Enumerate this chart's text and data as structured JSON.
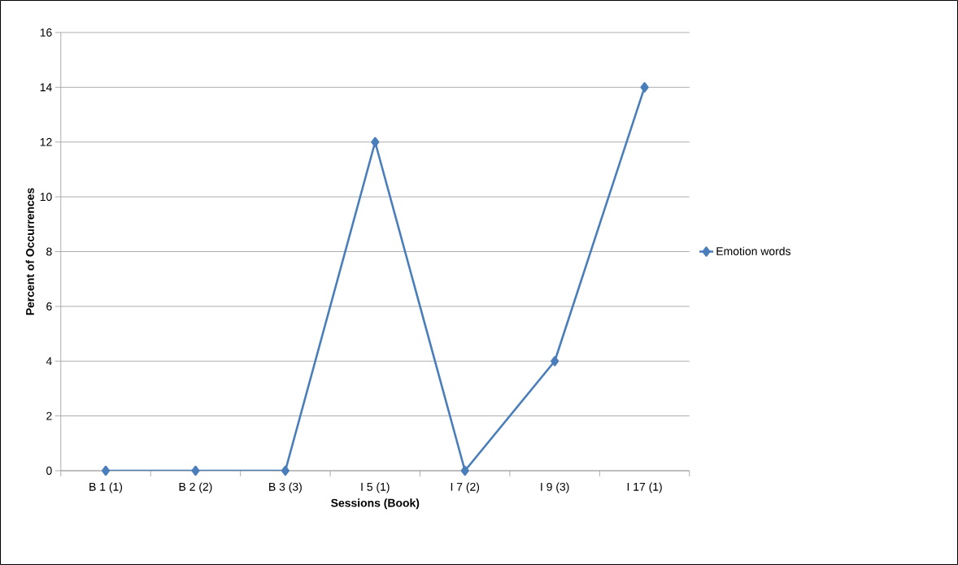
{
  "chart_data": {
    "type": "line",
    "xlabel": "Sessions (Book)",
    "ylabel": "Percent of Occurrences",
    "categories": [
      "B 1 (1)",
      "B 2 (2)",
      "B 3 (3)",
      "I 5 (1)",
      "I 7 (2)",
      "I 9 (3)",
      "I 17 (1)"
    ],
    "series": [
      {
        "name": "Emotion words",
        "color": "#4a7ebb",
        "values": [
          0,
          0,
          0,
          12,
          0,
          4,
          14
        ]
      }
    ],
    "ylim": [
      0,
      16
    ],
    "yticks": [
      0,
      2,
      4,
      6,
      8,
      10,
      12,
      14,
      16
    ],
    "grid": "y",
    "legend": "right",
    "marker": "diamond",
    "line_style": "solid"
  }
}
